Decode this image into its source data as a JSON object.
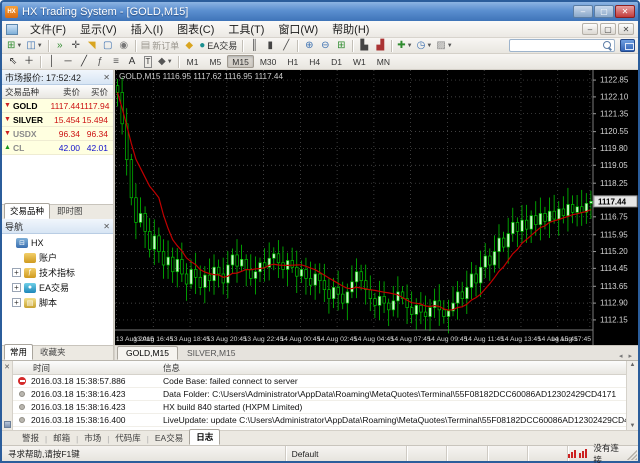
{
  "window": {
    "title": "HX Trading System - [GOLD,M15]",
    "controls": {
      "minimize": "–",
      "maximize": "▢",
      "close": "✕"
    }
  },
  "menu": {
    "items": [
      "文件(F)",
      "显示(V)",
      "插入(I)",
      "图表(C)",
      "工具(T)",
      "窗口(W)",
      "帮助(H)"
    ],
    "mdi_controls": [
      "–",
      "▢",
      "✕"
    ]
  },
  "toolbar": {
    "new_order_label": "新订单",
    "ea_label": "EA交易",
    "timeframes": [
      "M1",
      "M5",
      "M15",
      "M30",
      "H1",
      "H4",
      "D1",
      "W1",
      "MN"
    ],
    "active_timeframe": "M15",
    "search_value": ""
  },
  "market_watch": {
    "title": "市场报价: 17:52:42",
    "columns": [
      "交易品种",
      "卖价",
      "买价"
    ],
    "rows": [
      {
        "symbol": "GOLD",
        "bid": "1117.44",
        "ask": "1117.94",
        "dir": "down",
        "price_color": "#cc1111",
        "symbol_color": "#000000"
      },
      {
        "symbol": "SILVER",
        "bid": "15.454",
        "ask": "15.494",
        "dir": "down",
        "price_color": "#cc1111",
        "symbol_color": "#000000"
      },
      {
        "symbol": "USDX",
        "bid": "96.34",
        "ask": "96.34",
        "dir": "down",
        "price_color": "#cc1111",
        "symbol_color": "#8a8a8a"
      },
      {
        "symbol": "CL",
        "bid": "42.00",
        "ask": "42.01",
        "dir": "up",
        "price_color": "#1111cc",
        "symbol_color": "#8a8a8a"
      }
    ],
    "tabs": [
      "交易品种",
      "即时图"
    ],
    "active_tab": "交易品种"
  },
  "navigator": {
    "title": "导航",
    "root": "HX",
    "items": [
      {
        "label": "账户",
        "icon": "accounts-icon",
        "color": "#d9a520",
        "glyph": "◩",
        "expandable": false
      },
      {
        "label": "技术指标",
        "icon": "indicators-icon",
        "color": "#c8a builds",
        "glyph": "ƒ",
        "expandable": true
      },
      {
        "label": "EA交易",
        "icon": "ea-trading-icon",
        "color": "#2a9ad4",
        "glyph": "●",
        "expandable": true
      },
      {
        "label": "脚本",
        "icon": "scripts-icon",
        "color": "#c8a232",
        "glyph": "▤",
        "expandable": true
      }
    ],
    "tabs": [
      "常用",
      "收藏夹"
    ],
    "active_tab": "常用"
  },
  "chart": {
    "ohlc_label": "GOLD,M15 1116.95 1117.62 1116.95 1117.44",
    "current_price": "1117.44",
    "price_labels": [
      "1122.85",
      "1122.10",
      "1121.35",
      "1120.55",
      "1119.80",
      "1119.05",
      "1118.25",
      "1116.75",
      "1115.95",
      "1115.20",
      "1114.45",
      "1113.65",
      "1112.90",
      "1112.15"
    ],
    "time_labels": [
      "13 Aug 2015",
      "13 Aug 16:45",
      "13 Aug 18:45",
      "13 Aug 20:45",
      "13 Aug 22:45",
      "14 Aug 00:45",
      "14 Aug 02:45",
      "14 Aug 04:45",
      "14 Aug 07:45",
      "14 Aug 09:45",
      "14 Aug 11:45",
      "14 Aug 13:45",
      "14 Aug 15:45",
      "14 Aug 17:45"
    ],
    "price_min": 1111.7,
    "price_max": 1123.3,
    "open_first": 1122.6,
    "ma_period": 10,
    "closes": [
      1122.3,
      1120.9,
      1119.3,
      1117.6,
      1116.5,
      1116.9,
      1116.1,
      1115.3,
      1115.9,
      1115.2,
      1114.6,
      1114.95,
      1114.3,
      1114.85,
      1114.2,
      1113.75,
      1114.4,
      1114.05,
      1113.6,
      1114.15,
      1113.9,
      1114.5,
      1114.2,
      1113.8,
      1114.6,
      1115.05,
      1114.55,
      1114.85,
      1114.4,
      1114.0,
      1114.3,
      1114.7,
      1114.5,
      1114.9,
      1115.1,
      1114.7,
      1114.4,
      1114.8,
      1114.5,
      1114.1,
      1114.4,
      1114.0,
      1113.7,
      1114.2,
      1113.9,
      1113.5,
      1113.1,
      1113.6,
      1113.3,
      1112.9,
      1113.4,
      1113.85,
      1114.3,
      1113.9,
      1113.5,
      1113.1,
      1112.8,
      1113.2,
      1112.9,
      1112.6,
      1113.0,
      1113.4,
      1113.1,
      1112.7,
      1112.4,
      1112.8,
      1112.5,
      1112.3,
      1112.7,
      1113.0,
      1112.6,
      1112.3,
      1112.55,
      1112.9,
      1113.4,
      1113.1,
      1113.6,
      1114.2,
      1113.8,
      1114.5,
      1115.0,
      1114.6,
      1115.2,
      1115.8,
      1115.4,
      1116.0,
      1116.5,
      1116.1,
      1116.6,
      1116.2,
      1116.8,
      1116.4,
      1116.9,
      1116.55,
      1117.0,
      1116.65,
      1117.1,
      1116.8,
      1117.3,
      1116.95,
      1117.2,
      1116.95,
      1117.35,
      1117.44
    ],
    "colors": {
      "background": "#000000",
      "grid": "#575757",
      "candle": "#00c400",
      "bull_fill": "#ccf5cc",
      "bear_fill": "#000000",
      "ma_line": "#c00000",
      "axis_text": "#d6d6d6"
    }
  },
  "chart_tabs": {
    "tabs": [
      "GOLD,M15",
      "SILVER,M15"
    ],
    "active": "GOLD,M15"
  },
  "terminal": {
    "columns": [
      "时间",
      "信息"
    ],
    "rows": [
      {
        "level": "error",
        "time": "2016.03.18 15:38:57.886",
        "msg": "Code Base: failed connect to server"
      },
      {
        "level": "info",
        "time": "2016.03.18 15:38:16.423",
        "msg": "Data Folder: C:\\Users\\Administrator\\AppData\\Roaming\\MetaQuotes\\Terminal\\55F08182DCC60086AD12302429CD4171"
      },
      {
        "level": "info",
        "time": "2016.03.18 15:38:16.423",
        "msg": "HX build 840 started (HXPM Limited)"
      },
      {
        "level": "info",
        "time": "2016.03.18 15:38:16.400",
        "msg": "LiveUpdate: update C:\\Users\\Administrator\\AppData\\Roaming\\MetaQuotes\\Terminal\\55F08182DCC60086AD12302429CD4171\\MQL4 folder finished"
      }
    ],
    "tabs": [
      "警报",
      "邮箱",
      "市场",
      "代码库",
      "EA交易",
      "日志"
    ],
    "active_tab": "日志"
  },
  "status_bar": {
    "help": "寻求帮助,请按F1键",
    "profile": "Default",
    "connection": "没有连接"
  }
}
